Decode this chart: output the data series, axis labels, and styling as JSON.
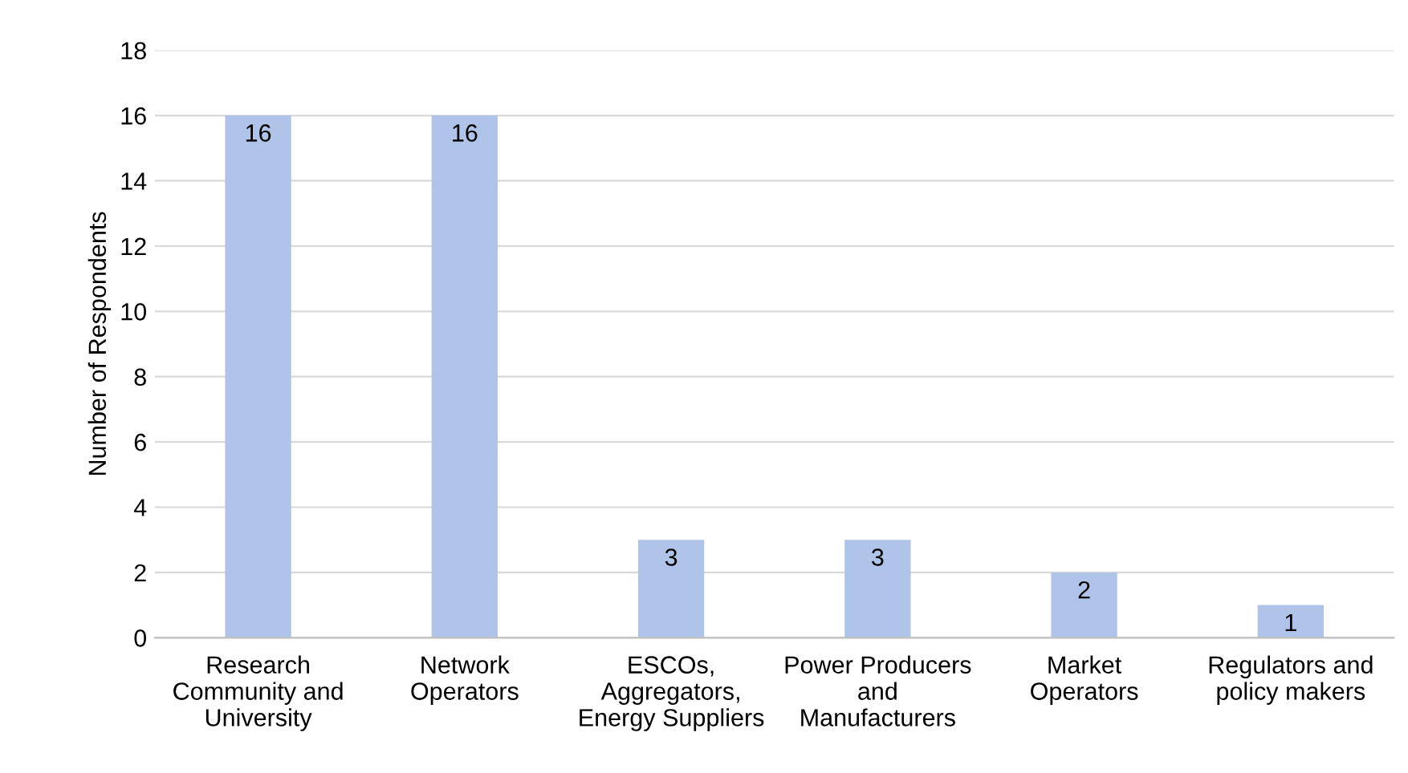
{
  "chart_data": {
    "type": "bar",
    "categories": [
      "Research\nCommunity and\nUniversity",
      "Network\nOperators",
      "ESCOs,\nAggregators,\nEnergy Suppliers",
      "Power Producers\nand\nManufacturers",
      "Market\nOperators",
      "Regulators and\npolicy makers"
    ],
    "values": [
      16,
      16,
      3,
      3,
      2,
      1
    ],
    "color": "#b0c3e8",
    "ylabel": "Number of Respondents",
    "ylim": [
      0,
      18
    ],
    "yticks": [
      0,
      2,
      4,
      6,
      8,
      10,
      12,
      14,
      16,
      18
    ],
    "grid": "y",
    "data_labels": true
  }
}
